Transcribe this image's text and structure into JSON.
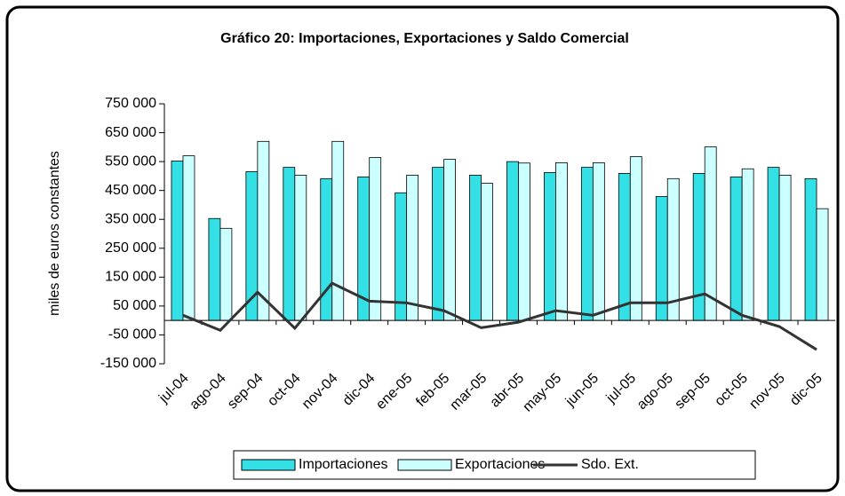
{
  "chart_data": {
    "type": "bar_line",
    "title": "Gráfico 20: Importaciones, Exportaciones y Saldo Comercial",
    "ylabel": "miles de euros constantes",
    "categories": [
      "jul-04",
      "ago-04",
      "sep-04",
      "oct-04",
      "nov-04",
      "dic-04",
      "ene-05",
      "feb-05",
      "mar-05",
      "abr-05",
      "may-05",
      "jun-05",
      "jul-05",
      "ago-05",
      "sep-05",
      "oct-05",
      "nov-05",
      "dic-05"
    ],
    "series": [
      {
        "name": "Importaciones",
        "type": "bar",
        "color": "#33e0e6",
        "values": [
          552000,
          353000,
          515000,
          530000,
          491000,
          497000,
          442000,
          530000,
          503000,
          550000,
          512000,
          530000,
          509000,
          429000,
          509000,
          497000,
          530000,
          491000
        ]
      },
      {
        "name": "Exportaciones",
        "type": "bar",
        "color": "#ccffff",
        "values": [
          570000,
          319000,
          620000,
          503000,
          620000,
          564000,
          503000,
          558000,
          475000,
          545000,
          546000,
          546000,
          567000,
          491000,
          601000,
          525000,
          503000,
          387000
        ]
      },
      {
        "name": "Sdo. Ext.",
        "type": "line",
        "color": "#333333",
        "values": [
          18000,
          -34000,
          98000,
          -27000,
          129000,
          67000,
          61000,
          34000,
          -25000,
          -6000,
          34000,
          18000,
          61000,
          61000,
          92000,
          18000,
          -21000,
          -101000
        ]
      }
    ],
    "ylim": [
      -150000,
      750000
    ],
    "yticks": [
      {
        "value": -150000,
        "label": "-150 000"
      },
      {
        "value": -50000,
        "label": "-50 000"
      },
      {
        "value": 50000,
        "label": "50 000"
      },
      {
        "value": 150000,
        "label": "150 000"
      },
      {
        "value": 250000,
        "label": "250 000"
      },
      {
        "value": 350000,
        "label": "350 000"
      },
      {
        "value": 450000,
        "label": "450 000"
      },
      {
        "value": 550000,
        "label": "550 000"
      },
      {
        "value": 650000,
        "label": "650 000"
      },
      {
        "value": 750000,
        "label": "750 000"
      }
    ],
    "legend": "bottom"
  }
}
